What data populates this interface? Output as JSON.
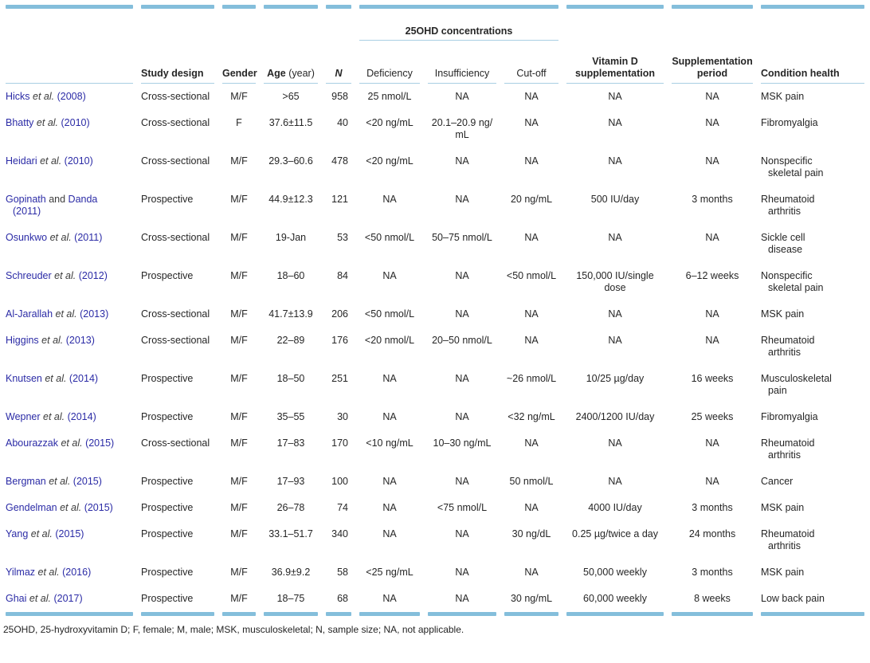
{
  "colors": {
    "bar": "#84bedb",
    "rule": "#a9cfe3",
    "link": "#2b2ba6",
    "text": "#262626"
  },
  "header": {
    "group_label": "25OHD concentrations",
    "columns": [
      {
        "id": "study",
        "label": ""
      },
      {
        "id": "design",
        "label": "Study design"
      },
      {
        "id": "gender",
        "label": "Gender"
      },
      {
        "id": "age",
        "label": "Age",
        "suffix": "(year)"
      },
      {
        "id": "n",
        "label": "N"
      },
      {
        "id": "deficiency",
        "label": "Deficiency"
      },
      {
        "id": "insufficiency",
        "label": "Insufficiency"
      },
      {
        "id": "cutoff",
        "label": "Cut-off"
      },
      {
        "id": "supplementation",
        "label": "Vitamin D supplementation"
      },
      {
        "id": "period",
        "label": "Supplementation period"
      },
      {
        "id": "condition",
        "label": "Condition health"
      }
    ]
  },
  "rows": [
    {
      "study": [
        {
          "text": "Hicks ",
          "style": "link"
        },
        {
          "text": "et al.",
          "style": "etal"
        },
        {
          "text": " (2008)",
          "style": "link"
        }
      ],
      "design": "Cross-sectional",
      "gender": "M/F",
      "age": ">65",
      "n": "958",
      "deficiency": "25 nmol/L",
      "insufficiency": "NA",
      "cutoff": "NA",
      "supplementation": "NA",
      "period": "NA",
      "condition": "MSK pain"
    },
    {
      "study": [
        {
          "text": "Bhatty ",
          "style": "link"
        },
        {
          "text": "et al.",
          "style": "etal"
        },
        {
          "text": " (2010)",
          "style": "link"
        }
      ],
      "design": "Cross-sectional",
      "gender": "F",
      "age": "37.6±11.5",
      "n": "40",
      "deficiency": "<20 ng/mL",
      "insufficiency": "20.1–20.9 ng/\nmL",
      "cutoff": "NA",
      "supplementation": "NA",
      "period": "NA",
      "condition": "Fibromyalgia"
    },
    {
      "study": [
        {
          "text": "Heidari ",
          "style": "link"
        },
        {
          "text": "et al.",
          "style": "etal"
        },
        {
          "text": " (2010)",
          "style": "link"
        }
      ],
      "design": "Cross-sectional",
      "gender": "M/F",
      "age": "29.3–60.6",
      "n": "478",
      "deficiency": "<20 ng/mL",
      "insufficiency": "NA",
      "cutoff": "NA",
      "supplementation": "NA",
      "period": "NA",
      "condition": "Nonspecific\nskeletal pain"
    },
    {
      "study": [
        {
          "text": "Gopinath",
          "style": "link"
        },
        {
          "text": " and ",
          "style": "plain"
        },
        {
          "text": "Danda",
          "style": "link"
        },
        {
          "text": "\n(2011)",
          "style": "link"
        }
      ],
      "design": "Prospective",
      "gender": "M/F",
      "age": "44.9±12.3",
      "n": "121",
      "deficiency": "NA",
      "insufficiency": "NA",
      "cutoff": "20 ng/mL",
      "supplementation": "500 IU/day",
      "period": "3 months",
      "condition": "Rheumatoid\narthritis"
    },
    {
      "study": [
        {
          "text": "Osunkwo ",
          "style": "link"
        },
        {
          "text": "et al.",
          "style": "etal"
        },
        {
          "text": " (2011)",
          "style": "link"
        }
      ],
      "design": "Cross-sectional",
      "gender": "M/F",
      "age": "19-Jan",
      "n": "53",
      "deficiency": "<50 nmol/L",
      "insufficiency": "50–75 nmol/L",
      "cutoff": "NA",
      "supplementation": "NA",
      "period": "NA",
      "condition": "Sickle cell\ndisease"
    },
    {
      "study": [
        {
          "text": "Schreuder ",
          "style": "link"
        },
        {
          "text": "et al.",
          "style": "etal"
        },
        {
          "text": " (2012)",
          "style": "link"
        }
      ],
      "design": "Prospective",
      "gender": "M/F",
      "age": "18–60",
      "n": "84",
      "deficiency": "NA",
      "insufficiency": "NA",
      "cutoff": "<50 nmol/L",
      "supplementation": "150,000 IU/single\ndose",
      "period": "6–12 weeks",
      "condition": "Nonspecific\nskeletal pain"
    },
    {
      "study": [
        {
          "text": "Al-Jarallah ",
          "style": "link"
        },
        {
          "text": "et al.",
          "style": "etal"
        },
        {
          "text": " (2013)",
          "style": "link"
        }
      ],
      "design": "Cross-sectional",
      "gender": "M/F",
      "age": "41.7±13.9",
      "n": "206",
      "deficiency": "<50 nmol/L",
      "insufficiency": "NA",
      "cutoff": "NA",
      "supplementation": "NA",
      "period": "NA",
      "condition": "MSK pain"
    },
    {
      "study": [
        {
          "text": "Higgins ",
          "style": "link"
        },
        {
          "text": "et al.",
          "style": "etal"
        },
        {
          "text": " (2013)",
          "style": "link"
        }
      ],
      "design": "Cross-sectional",
      "gender": "M/F",
      "age": "22–89",
      "n": "176",
      "deficiency": "<20 nmol/L",
      "insufficiency": "20–50 nmol/L",
      "cutoff": "NA",
      "supplementation": "NA",
      "period": "NA",
      "condition": "Rheumatoid\narthritis"
    },
    {
      "study": [
        {
          "text": "Knutsen ",
          "style": "link"
        },
        {
          "text": "et al.",
          "style": "etal"
        },
        {
          "text": " (2014)",
          "style": "link"
        }
      ],
      "design": "Prospective",
      "gender": "M/F",
      "age": "18–50",
      "n": "251",
      "deficiency": "NA",
      "insufficiency": "NA",
      "cutoff": "~26 nmol/L",
      "supplementation": "10/25 µg/day",
      "period": "16 weeks",
      "condition": "Musculoskeletal\npain"
    },
    {
      "study": [
        {
          "text": "Wepner ",
          "style": "link"
        },
        {
          "text": "et al.",
          "style": "etal"
        },
        {
          "text": " (2014)",
          "style": "link"
        }
      ],
      "design": "Prospective",
      "gender": "M/F",
      "age": "35–55",
      "n": "30",
      "deficiency": "NA",
      "insufficiency": "NA",
      "cutoff": "<32 ng/mL",
      "supplementation": "2400/1200 IU/day",
      "period": "25 weeks",
      "condition": "Fibromyalgia"
    },
    {
      "study": [
        {
          "text": "Abourazzak ",
          "style": "link"
        },
        {
          "text": "et al.",
          "style": "etal"
        },
        {
          "text": " (2015)",
          "style": "link"
        }
      ],
      "design": "Cross-sectional",
      "gender": "M/F",
      "age": "17–83",
      "n": "170",
      "deficiency": "<10 ng/mL",
      "insufficiency": "10–30 ng/mL",
      "cutoff": "NA",
      "supplementation": "NA",
      "period": "NA",
      "condition": "Rheumatoid\narthritis"
    },
    {
      "study": [
        {
          "text": "Bergman ",
          "style": "link"
        },
        {
          "text": "et al.",
          "style": "etal"
        },
        {
          "text": " (2015)",
          "style": "link"
        }
      ],
      "design": "Prospective",
      "gender": "M/F",
      "age": "17–93",
      "n": "100",
      "deficiency": "NA",
      "insufficiency": "NA",
      "cutoff": "50 nmol/L",
      "supplementation": "NA",
      "period": "NA",
      "condition": "Cancer"
    },
    {
      "study": [
        {
          "text": "Gendelman ",
          "style": "link"
        },
        {
          "text": "et al.",
          "style": "etal"
        },
        {
          "text": " (2015)",
          "style": "link"
        }
      ],
      "design": "Prospective",
      "gender": "M/F",
      "age": "26–78",
      "n": "74",
      "deficiency": "NA",
      "insufficiency": "<75 nmol/L",
      "cutoff": "NA",
      "supplementation": "4000 IU/day",
      "period": "3 months",
      "condition": "MSK pain"
    },
    {
      "study": [
        {
          "text": "Yang ",
          "style": "link"
        },
        {
          "text": "et al.",
          "style": "etal"
        },
        {
          "text": " (2015)",
          "style": "link"
        }
      ],
      "design": "Prospective",
      "gender": "M/F",
      "age": "33.1–51.7",
      "n": "340",
      "deficiency": "NA",
      "insufficiency": "NA",
      "cutoff": "30 ng/dL",
      "supplementation": "0.25 µg/twice a day",
      "period": "24 months",
      "condition": "Rheumatoid\narthritis"
    },
    {
      "study": [
        {
          "text": "Yilmaz ",
          "style": "link"
        },
        {
          "text": "et al.",
          "style": "etal"
        },
        {
          "text": " (2016)",
          "style": "link"
        }
      ],
      "design": "Prospective",
      "gender": "M/F",
      "age": "36.9±9.2",
      "n": "58",
      "deficiency": "<25 ng/mL",
      "insufficiency": "NA",
      "cutoff": "NA",
      "supplementation": "50,000 weekly",
      "period": "3 months",
      "condition": "MSK pain"
    },
    {
      "study": [
        {
          "text": "Ghai ",
          "style": "link"
        },
        {
          "text": "et al.",
          "style": "etal"
        },
        {
          "text": " (2017)",
          "style": "link"
        }
      ],
      "design": "Prospective",
      "gender": "M/F",
      "age": "18–75",
      "n": "68",
      "deficiency": "NA",
      "insufficiency": "NA",
      "cutoff": "30 ng/mL",
      "supplementation": "60,000 weekly",
      "period": "8 weeks",
      "condition": "Low back pain"
    }
  ],
  "footnote": "25OHD, 25-hydroxyvitamin D; F, female; M, male; MSK, musculoskeletal; N, sample size; NA, not applicable."
}
